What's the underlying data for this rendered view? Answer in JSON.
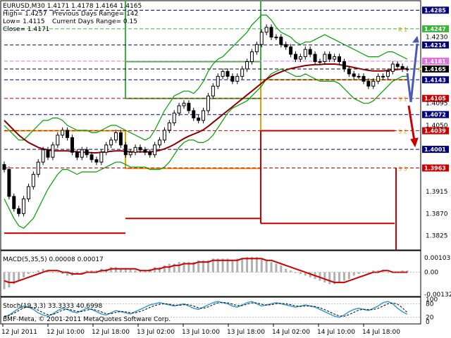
{
  "header": {
    "symbol_line": "EURUSD,M30  1.4171 1.4178 1.4164 1.4165",
    "high_line": "High= 1.4257",
    "low_line": "Low= 1.4115",
    "close_line": "Close= 1.4171",
    "prev_range": "Previous Days Range= 142",
    "curr_range": "Current Days Range= 0.15"
  },
  "colors": {
    "candles": "#000000",
    "bollinger": "#00a000",
    "ma": "#8b0000",
    "resistance": "#3ab53a",
    "support": "#cc0000",
    "pivot": "#e8a000",
    "hist": "#b0b0b0",
    "macd_signal": "#cc0000",
    "stoch_main": "#3a9bd0",
    "stoch_signal": "#000000",
    "arrow_up": "#4a5ab0",
    "arrow_down": "#cc0000"
  },
  "chart_data": [
    {
      "type": "candlestick",
      "name": "price",
      "ylim": [
        1.38,
        1.43
      ],
      "y_ticks": [
        "1.4230",
        "1.4095",
        "1.4050",
        "1.3915",
        "1.3870",
        "1.3825"
      ],
      "levels": [
        {
          "label": "1.4285",
          "value": 1.4285,
          "color": "#000080"
        },
        {
          "label": "1.4247",
          "value": 1.4247,
          "color": "#3ab53a"
        },
        {
          "label": "1.4214",
          "value": 1.4214,
          "color": "#000080"
        },
        {
          "label": "1.4181",
          "value": 1.4181,
          "color": "#e070e0"
        },
        {
          "label": "1.4165",
          "value": 1.4165,
          "color": "#000000"
        },
        {
          "label": "1.4143",
          "value": 1.4143,
          "color": "#000080"
        },
        {
          "label": "1.4105",
          "value": 1.4105,
          "color": "#cc0000"
        },
        {
          "label": "1.4072",
          "value": 1.4072,
          "color": "#000080"
        },
        {
          "label": "1.4039",
          "value": 1.4039,
          "color": "#cc0000"
        },
        {
          "label": "1.4001",
          "value": 1.4001,
          "color": "#000080"
        },
        {
          "label": "1.3963",
          "value": 1.3963,
          "color": "#cc0000"
        }
      ],
      "markers": [
        "R 1",
        "P",
        "S 1",
        "S 2",
        "S 3"
      ],
      "close": [
        1.396,
        1.3905,
        1.388,
        1.387,
        1.39,
        1.3925,
        1.395,
        1.3975,
        1.4,
        1.3985,
        1.401,
        1.403,
        1.404,
        1.4025,
        1.3995,
        1.3985,
        1.4,
        1.399,
        1.398,
        1.3975,
        1.3995,
        1.401,
        1.402,
        1.4035,
        1.401,
        1.399,
        1.3995,
        1.4005,
        1.4,
        1.3995,
        1.399,
        1.401,
        1.402,
        1.404,
        1.4055,
        1.4075,
        1.409,
        1.4095,
        1.408,
        1.4065,
        1.406,
        1.408,
        1.411,
        1.413,
        1.415,
        1.416,
        1.415,
        1.414,
        1.415,
        1.4165,
        1.418,
        1.42,
        1.4215,
        1.424,
        1.425,
        1.423,
        1.423,
        1.4215,
        1.421,
        1.4195,
        1.4185,
        1.419,
        1.4205,
        1.4195,
        1.418,
        1.418,
        1.4195,
        1.4185,
        1.419,
        1.418,
        1.4165,
        1.4155,
        1.415,
        1.415,
        1.414,
        1.413,
        1.414,
        1.415,
        1.415,
        1.416,
        1.4175,
        1.417,
        1.4165,
        1.4165
      ],
      "upper_band": [
        1.405,
        1.404,
        1.403,
        1.402,
        1.402,
        1.403,
        1.404,
        1.405,
        1.406,
        1.406,
        1.4065,
        1.4065,
        1.406,
        1.405,
        1.4045,
        1.404,
        1.404,
        1.404,
        1.4035,
        1.4035,
        1.404,
        1.4045,
        1.405,
        1.405,
        1.4045,
        1.404,
        1.4035,
        1.403,
        1.4025,
        1.402,
        1.4025,
        1.404,
        1.406,
        1.408,
        1.4095,
        1.411,
        1.4115,
        1.412,
        1.412,
        1.4115,
        1.4125,
        1.414,
        1.416,
        1.4175,
        1.4185,
        1.419,
        1.42,
        1.421,
        1.422,
        1.423,
        1.424,
        1.4255,
        1.4265,
        1.4275,
        1.4275,
        1.4265,
        1.425,
        1.424,
        1.4235,
        1.423,
        1.422,
        1.4215,
        1.422,
        1.422,
        1.4225,
        1.423,
        1.4235,
        1.423,
        1.4225,
        1.422,
        1.4215,
        1.421,
        1.4205,
        1.42,
        1.4195,
        1.419,
        1.419,
        1.419,
        1.4195,
        1.42,
        1.42,
        1.4195,
        1.419,
        1.4185
      ],
      "lower_band": [
        1.39,
        1.388,
        1.386,
        1.3845,
        1.384,
        1.385,
        1.386,
        1.388,
        1.39,
        1.392,
        1.3935,
        1.395,
        1.396,
        1.396,
        1.3955,
        1.395,
        1.3955,
        1.3955,
        1.3955,
        1.3955,
        1.396,
        1.3965,
        1.397,
        1.3975,
        1.3975,
        1.397,
        1.3965,
        1.3965,
        1.3965,
        1.3965,
        1.396,
        1.396,
        1.396,
        1.3965,
        1.3975,
        1.399,
        1.4005,
        1.4015,
        1.402,
        1.402,
        1.4015,
        1.4015,
        1.402,
        1.403,
        1.4045,
        1.406,
        1.4075,
        1.4085,
        1.409,
        1.4095,
        1.41,
        1.411,
        1.412,
        1.413,
        1.4145,
        1.4155,
        1.416,
        1.4165,
        1.416,
        1.4155,
        1.415,
        1.415,
        1.4155,
        1.415,
        1.4145,
        1.414,
        1.414,
        1.414,
        1.414,
        1.4135,
        1.4125,
        1.4115,
        1.4105,
        1.41,
        1.4095,
        1.4095,
        1.41,
        1.411,
        1.412,
        1.413,
        1.414,
        1.4145,
        1.415,
        1.415
      ],
      "ma": [
        1.406,
        1.405,
        1.404,
        1.403,
        1.4022,
        1.4015,
        1.401,
        1.4005,
        1.4002,
        1.4,
        1.3998,
        1.3998,
        1.3998,
        1.3998,
        1.3997,
        1.3996,
        1.3995,
        1.3995,
        1.3994,
        1.3994,
        1.3995,
        1.3996,
        1.3997,
        1.3998,
        1.3998,
        1.3997,
        1.3996,
        1.3996,
        1.3996,
        1.3996,
        1.3996,
        1.3997,
        1.3999,
        1.4002,
        1.4006,
        1.4011,
        1.4017,
        1.4023,
        1.4028,
        1.4032,
        1.4036,
        1.4041,
        1.4048,
        1.4056,
        1.4064,
        1.4072,
        1.408,
        1.4088,
        1.4096,
        1.4104,
        1.4112,
        1.412,
        1.4128,
        1.4136,
        1.4144,
        1.415,
        1.4155,
        1.4159,
        1.4163,
        1.4166,
        1.4168,
        1.417,
        1.4172,
        1.4173,
        1.4174,
        1.4174,
        1.4175,
        1.4175,
        1.4175,
        1.4174,
        1.4172,
        1.417,
        1.4168,
        1.4166,
        1.4164,
        1.4162,
        1.4161,
        1.4161,
        1.4161,
        1.4162,
        1.4163,
        1.4164,
        1.4165,
        1.4166
      ]
    },
    {
      "type": "bar",
      "name": "MACD",
      "label": "MACD(5,35,5) 0.00008 0.00017",
      "ylim": [
        -0.0013,
        0.0011
      ],
      "y_ticks": [
        "0.00103",
        "0.00",
        "-0.00132"
      ],
      "signal": [
        -0.0005,
        -0.0006,
        -0.0006,
        -0.0005,
        -0.0004,
        -0.0003,
        -0.0002,
        -0.0001,
        0.0,
        0.0001,
        0.0001,
        0.0001,
        0.0,
        0.0,
        -0.0001,
        -0.0001,
        -0.0001,
        0.0,
        0.0,
        0.0,
        0.0001,
        0.0001,
        0.0002,
        0.0002,
        0.0002,
        0.0002,
        0.0002,
        0.0002,
        0.0001,
        0.0001,
        0.0001,
        0.0002,
        0.0002,
        0.0003,
        0.0003,
        0.0004,
        0.0004,
        0.0005,
        0.0005,
        0.0005,
        0.0006,
        0.0006,
        0.0006,
        0.0007,
        0.0007,
        0.0007,
        0.0007,
        0.0007,
        0.0007,
        0.0008,
        0.0008,
        0.0008,
        0.0008,
        0.0008,
        0.0007,
        0.0007,
        0.0006,
        0.0005,
        0.0004,
        0.0003,
        0.0002,
        0.0001,
        0.0,
        -0.0001,
        -0.0002,
        -0.0003,
        -0.0004,
        -0.0005,
        -0.0006,
        -0.0006,
        -0.0006,
        -0.0005,
        -0.0004,
        -0.0003,
        -0.0002,
        -0.0001,
        0.0,
        0.0,
        0.0001,
        0.0001,
        0.0,
        0.0,
        0.0,
        0.0
      ],
      "values": [
        -0.001,
        -0.0009,
        -0.0007,
        -0.0005,
        -0.0003,
        -0.0001,
        0.0,
        0.0001,
        0.0002,
        0.0001,
        0.0,
        0.0,
        -0.0001,
        -0.0002,
        -0.0002,
        -0.0001,
        0.0,
        0.0001,
        0.0001,
        0.0001,
        0.0002,
        0.0002,
        0.0003,
        0.0003,
        0.0002,
        0.0002,
        0.0002,
        0.0001,
        0.0001,
        0.0001,
        0.0002,
        0.0003,
        0.0003,
        0.0004,
        0.0005,
        0.0005,
        0.0006,
        0.0006,
        0.0006,
        0.0006,
        0.0007,
        0.0007,
        0.0007,
        0.0008,
        0.0008,
        0.0008,
        0.0008,
        0.0007,
        0.0008,
        0.0008,
        0.0009,
        0.0009,
        0.0009,
        0.0008,
        0.0007,
        0.0006,
        0.0005,
        0.0004,
        0.0002,
        0.0001,
        0.0,
        -0.0001,
        -0.0002,
        -0.0003,
        -0.0004,
        -0.0005,
        -0.0006,
        -0.0007,
        -0.0007,
        -0.0006,
        -0.0005,
        -0.0004,
        -0.0002,
        -0.0001,
        0.0,
        0.0,
        0.0001,
        0.0001,
        0.0001,
        0.0,
        0.0,
        0.0,
        0.0001,
        0.0001
      ]
    },
    {
      "type": "line",
      "name": "Stoch",
      "label": "Stoch(19,3,3) 33.3333 40.6998",
      "ylim": [
        0,
        100
      ],
      "y_ticks": [
        "100",
        "80",
        "20",
        "0"
      ],
      "main": [
        20,
        30,
        45,
        60,
        70,
        65,
        55,
        40,
        30,
        25,
        35,
        50,
        60,
        55,
        45,
        40,
        50,
        60,
        55,
        45,
        35,
        30,
        40,
        50,
        45,
        40,
        35,
        45,
        55,
        65,
        75,
        80,
        85,
        80,
        75,
        70,
        75,
        80,
        70,
        60,
        55,
        65,
        75,
        85,
        90,
        85,
        80,
        70,
        65,
        75,
        85,
        90,
        80,
        70,
        75,
        80,
        85,
        80,
        75,
        70,
        65,
        70,
        75,
        70,
        65,
        55,
        45,
        35,
        25,
        20,
        30,
        45,
        55,
        60,
        55,
        50,
        60,
        70,
        85,
        90,
        80,
        60,
        45,
        33
      ],
      "signal": [
        25,
        28,
        38,
        50,
        62,
        66,
        62,
        52,
        40,
        32,
        32,
        42,
        52,
        56,
        52,
        46,
        46,
        52,
        56,
        52,
        44,
        36,
        36,
        42,
        46,
        44,
        40,
        40,
        46,
        54,
        64,
        72,
        78,
        80,
        78,
        74,
        73,
        76,
        76,
        70,
        62,
        60,
        66,
        76,
        84,
        86,
        84,
        78,
        72,
        72,
        78,
        84,
        84,
        78,
        74,
        76,
        80,
        82,
        80,
        76,
        70,
        68,
        70,
        70,
        68,
        62,
        54,
        44,
        34,
        26,
        24,
        32,
        42,
        52,
        56,
        54,
        54,
        60,
        70,
        80,
        84,
        78,
        62,
        41
      ]
    }
  ],
  "x_labels": [
    "12 Jul 2011",
    "12 Jul 10:00",
    "12 Jul 18:00",
    "13 Jul 02:00",
    "13 Jul 10:00",
    "13 Jul 18:00",
    "14 Jul 02:00",
    "14 Jul 10:00",
    "14 Jul 18:00"
  ],
  "watermark": "BMF-Meta, © 2001-2011 MetaQuotes Software Corp."
}
